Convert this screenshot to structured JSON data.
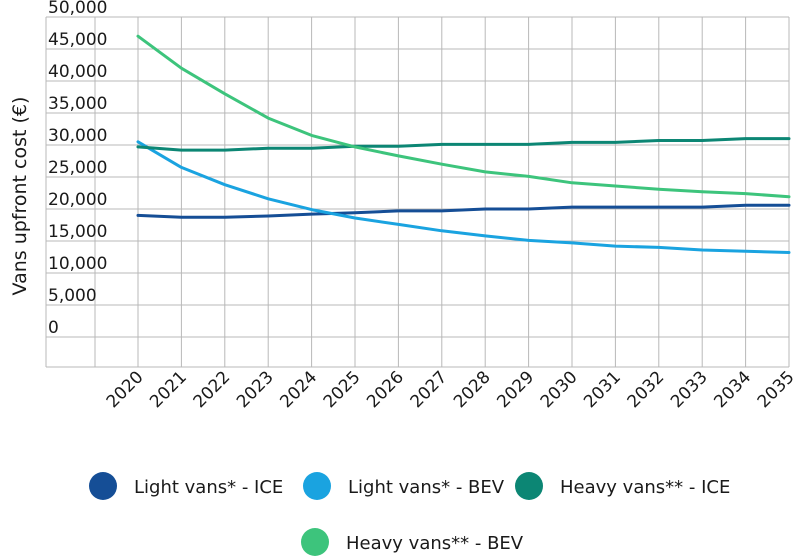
{
  "chart_data": {
    "type": "line",
    "title": "",
    "xlabel": "",
    "ylabel": "Vans upfront cost (€)",
    "ylim": [
      0,
      50000
    ],
    "yticks": [
      0,
      5000,
      10000,
      15000,
      20000,
      25000,
      30000,
      35000,
      40000,
      45000,
      50000
    ],
    "ytick_labels": [
      "0",
      "5,000",
      "10,000",
      "15,000",
      "20,000",
      "25,000",
      "30,000",
      "35,000",
      "40,000",
      "45,000",
      "50,000"
    ],
    "categories": [
      "2020",
      "2021",
      "2022",
      "2023",
      "2024",
      "2025",
      "2026",
      "2027",
      "2028",
      "2029",
      "2030",
      "2031",
      "2032",
      "2033",
      "2034",
      "2035"
    ],
    "grid": true,
    "legend_position": "bottom",
    "series": [
      {
        "name": "Light vans* - ICE",
        "color": "#154e96",
        "values": [
          19000,
          18700,
          18700,
          18900,
          19200,
          19400,
          19700,
          19700,
          20000,
          20000,
          20300,
          20300,
          20300,
          20300,
          20600,
          20600
        ]
      },
      {
        "name": "Light vans* - BEV",
        "color": "#1aa3e0",
        "values": [
          30500,
          26500,
          23800,
          21600,
          19900,
          18600,
          17600,
          16600,
          15800,
          15100,
          14700,
          14200,
          14000,
          13600,
          13400,
          13200
        ]
      },
      {
        "name": "Heavy vans** - ICE",
        "color": "#0c8674",
        "values": [
          29700,
          29200,
          29200,
          29500,
          29500,
          29800,
          29800,
          30100,
          30100,
          30100,
          30400,
          30400,
          30700,
          30700,
          31000,
          31000
        ]
      },
      {
        "name": "Heavy vans** - BEV",
        "color": "#3dc47c",
        "values": [
          47000,
          42000,
          38000,
          34200,
          31500,
          29700,
          28300,
          27000,
          25800,
          25100,
          24100,
          23600,
          23100,
          22700,
          22400,
          21900
        ]
      }
    ]
  }
}
